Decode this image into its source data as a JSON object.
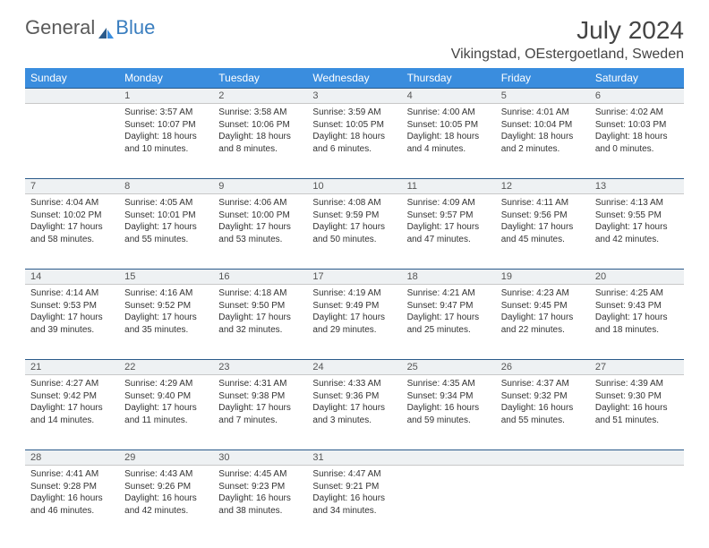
{
  "logo": {
    "part1": "General",
    "part2": "Blue"
  },
  "title": "July 2024",
  "location": "Vikingstad, OEstergoetland, Sweden",
  "header_bg": "#3a8dde",
  "daynum_border_top": "#2a5a8a",
  "daynum_border_bottom": "#c8c8c8",
  "daynum_bg": "#eef1f3",
  "weekdays": [
    "Sunday",
    "Monday",
    "Tuesday",
    "Wednesday",
    "Thursday",
    "Friday",
    "Saturday"
  ],
  "weeks": [
    {
      "nums": [
        "",
        "1",
        "2",
        "3",
        "4",
        "5",
        "6"
      ],
      "cells": [
        null,
        {
          "sunrise": "Sunrise: 3:57 AM",
          "sunset": "Sunset: 10:07 PM",
          "day1": "Daylight: 18 hours",
          "day2": "and 10 minutes."
        },
        {
          "sunrise": "Sunrise: 3:58 AM",
          "sunset": "Sunset: 10:06 PM",
          "day1": "Daylight: 18 hours",
          "day2": "and 8 minutes."
        },
        {
          "sunrise": "Sunrise: 3:59 AM",
          "sunset": "Sunset: 10:05 PM",
          "day1": "Daylight: 18 hours",
          "day2": "and 6 minutes."
        },
        {
          "sunrise": "Sunrise: 4:00 AM",
          "sunset": "Sunset: 10:05 PM",
          "day1": "Daylight: 18 hours",
          "day2": "and 4 minutes."
        },
        {
          "sunrise": "Sunrise: 4:01 AM",
          "sunset": "Sunset: 10:04 PM",
          "day1": "Daylight: 18 hours",
          "day2": "and 2 minutes."
        },
        {
          "sunrise": "Sunrise: 4:02 AM",
          "sunset": "Sunset: 10:03 PM",
          "day1": "Daylight: 18 hours",
          "day2": "and 0 minutes."
        }
      ]
    },
    {
      "nums": [
        "7",
        "8",
        "9",
        "10",
        "11",
        "12",
        "13"
      ],
      "cells": [
        {
          "sunrise": "Sunrise: 4:04 AM",
          "sunset": "Sunset: 10:02 PM",
          "day1": "Daylight: 17 hours",
          "day2": "and 58 minutes."
        },
        {
          "sunrise": "Sunrise: 4:05 AM",
          "sunset": "Sunset: 10:01 PM",
          "day1": "Daylight: 17 hours",
          "day2": "and 55 minutes."
        },
        {
          "sunrise": "Sunrise: 4:06 AM",
          "sunset": "Sunset: 10:00 PM",
          "day1": "Daylight: 17 hours",
          "day2": "and 53 minutes."
        },
        {
          "sunrise": "Sunrise: 4:08 AM",
          "sunset": "Sunset: 9:59 PM",
          "day1": "Daylight: 17 hours",
          "day2": "and 50 minutes."
        },
        {
          "sunrise": "Sunrise: 4:09 AM",
          "sunset": "Sunset: 9:57 PM",
          "day1": "Daylight: 17 hours",
          "day2": "and 47 minutes."
        },
        {
          "sunrise": "Sunrise: 4:11 AM",
          "sunset": "Sunset: 9:56 PM",
          "day1": "Daylight: 17 hours",
          "day2": "and 45 minutes."
        },
        {
          "sunrise": "Sunrise: 4:13 AM",
          "sunset": "Sunset: 9:55 PM",
          "day1": "Daylight: 17 hours",
          "day2": "and 42 minutes."
        }
      ]
    },
    {
      "nums": [
        "14",
        "15",
        "16",
        "17",
        "18",
        "19",
        "20"
      ],
      "cells": [
        {
          "sunrise": "Sunrise: 4:14 AM",
          "sunset": "Sunset: 9:53 PM",
          "day1": "Daylight: 17 hours",
          "day2": "and 39 minutes."
        },
        {
          "sunrise": "Sunrise: 4:16 AM",
          "sunset": "Sunset: 9:52 PM",
          "day1": "Daylight: 17 hours",
          "day2": "and 35 minutes."
        },
        {
          "sunrise": "Sunrise: 4:18 AM",
          "sunset": "Sunset: 9:50 PM",
          "day1": "Daylight: 17 hours",
          "day2": "and 32 minutes."
        },
        {
          "sunrise": "Sunrise: 4:19 AM",
          "sunset": "Sunset: 9:49 PM",
          "day1": "Daylight: 17 hours",
          "day2": "and 29 minutes."
        },
        {
          "sunrise": "Sunrise: 4:21 AM",
          "sunset": "Sunset: 9:47 PM",
          "day1": "Daylight: 17 hours",
          "day2": "and 25 minutes."
        },
        {
          "sunrise": "Sunrise: 4:23 AM",
          "sunset": "Sunset: 9:45 PM",
          "day1": "Daylight: 17 hours",
          "day2": "and 22 minutes."
        },
        {
          "sunrise": "Sunrise: 4:25 AM",
          "sunset": "Sunset: 9:43 PM",
          "day1": "Daylight: 17 hours",
          "day2": "and 18 minutes."
        }
      ]
    },
    {
      "nums": [
        "21",
        "22",
        "23",
        "24",
        "25",
        "26",
        "27"
      ],
      "cells": [
        {
          "sunrise": "Sunrise: 4:27 AM",
          "sunset": "Sunset: 9:42 PM",
          "day1": "Daylight: 17 hours",
          "day2": "and 14 minutes."
        },
        {
          "sunrise": "Sunrise: 4:29 AM",
          "sunset": "Sunset: 9:40 PM",
          "day1": "Daylight: 17 hours",
          "day2": "and 11 minutes."
        },
        {
          "sunrise": "Sunrise: 4:31 AM",
          "sunset": "Sunset: 9:38 PM",
          "day1": "Daylight: 17 hours",
          "day2": "and 7 minutes."
        },
        {
          "sunrise": "Sunrise: 4:33 AM",
          "sunset": "Sunset: 9:36 PM",
          "day1": "Daylight: 17 hours",
          "day2": "and 3 minutes."
        },
        {
          "sunrise": "Sunrise: 4:35 AM",
          "sunset": "Sunset: 9:34 PM",
          "day1": "Daylight: 16 hours",
          "day2": "and 59 minutes."
        },
        {
          "sunrise": "Sunrise: 4:37 AM",
          "sunset": "Sunset: 9:32 PM",
          "day1": "Daylight: 16 hours",
          "day2": "and 55 minutes."
        },
        {
          "sunrise": "Sunrise: 4:39 AM",
          "sunset": "Sunset: 9:30 PM",
          "day1": "Daylight: 16 hours",
          "day2": "and 51 minutes."
        }
      ]
    },
    {
      "nums": [
        "28",
        "29",
        "30",
        "31",
        "",
        "",
        ""
      ],
      "cells": [
        {
          "sunrise": "Sunrise: 4:41 AM",
          "sunset": "Sunset: 9:28 PM",
          "day1": "Daylight: 16 hours",
          "day2": "and 46 minutes."
        },
        {
          "sunrise": "Sunrise: 4:43 AM",
          "sunset": "Sunset: 9:26 PM",
          "day1": "Daylight: 16 hours",
          "day2": "and 42 minutes."
        },
        {
          "sunrise": "Sunrise: 4:45 AM",
          "sunset": "Sunset: 9:23 PM",
          "day1": "Daylight: 16 hours",
          "day2": "and 38 minutes."
        },
        {
          "sunrise": "Sunrise: 4:47 AM",
          "sunset": "Sunset: 9:21 PM",
          "day1": "Daylight: 16 hours",
          "day2": "and 34 minutes."
        },
        null,
        null,
        null
      ]
    }
  ]
}
